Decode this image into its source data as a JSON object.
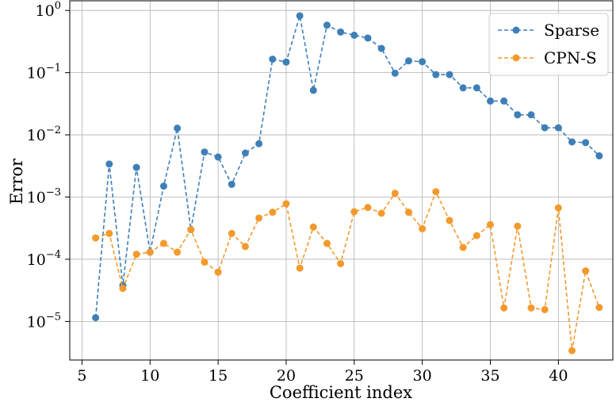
{
  "chart_data": {
    "type": "line",
    "title": "",
    "xlabel": "Coefficient index",
    "ylabel": "Error",
    "y_scale": "log",
    "xlim": [
      4.1,
      44.0
    ],
    "ylim": [
      2.4e-06,
      1.43
    ],
    "x_ticks": [
      5,
      10,
      15,
      20,
      25,
      30,
      35,
      40
    ],
    "y_ticks": [
      1e-05,
      0.0001,
      0.001,
      0.01,
      0.1,
      1
    ],
    "y_tick_labels": [
      {
        "base": "10",
        "exp": "−5"
      },
      {
        "base": "10",
        "exp": "−4"
      },
      {
        "base": "10",
        "exp": "−3"
      },
      {
        "base": "10",
        "exp": "−2"
      },
      {
        "base": "10",
        "exp": "−1"
      },
      {
        "base": "10",
        "exp": "0"
      }
    ],
    "grid": true,
    "legend_position": "top-right",
    "x": [
      6,
      7,
      8,
      9,
      10,
      11,
      12,
      13,
      14,
      15,
      16,
      17,
      18,
      19,
      20,
      21,
      22,
      23,
      24,
      25,
      26,
      27,
      28,
      29,
      30,
      31,
      32,
      33,
      34,
      35,
      36,
      37,
      38,
      39,
      40,
      41,
      42,
      43
    ],
    "series": [
      {
        "name": "Sparse",
        "color": "#3f7fb8",
        "values": [
          1.15e-05,
          0.0034,
          3.8e-05,
          0.003,
          0.00013,
          0.0015,
          0.0128,
          0.0003,
          0.0053,
          0.0044,
          0.0016,
          0.0051,
          0.0072,
          0.165,
          0.148,
          0.82,
          0.052,
          0.58,
          0.45,
          0.4,
          0.36,
          0.245,
          0.098,
          0.155,
          0.15,
          0.093,
          0.093,
          0.057,
          0.057,
          0.035,
          0.035,
          0.021,
          0.021,
          0.013,
          0.013,
          0.0077,
          0.0075,
          0.0046
        ]
      },
      {
        "name": "CPN-S",
        "color": "#f39a2c",
        "values": [
          0.00022,
          0.00026,
          3.4e-05,
          0.00012,
          0.00013,
          0.00018,
          0.00013,
          0.0003,
          9e-05,
          6.2e-05,
          0.00026,
          0.00016,
          0.00046,
          0.00057,
          0.00078,
          7.2e-05,
          0.00033,
          0.00018,
          8.5e-05,
          0.00058,
          0.00068,
          0.00055,
          0.00115,
          0.00057,
          0.00031,
          0.00122,
          0.00042,
          0.000155,
          0.00024,
          0.00036,
          1.65e-05,
          0.00034,
          1.65e-05,
          1.55e-05,
          0.00067,
          3.4e-06,
          6.5e-05,
          1.68e-05
        ]
      }
    ]
  }
}
